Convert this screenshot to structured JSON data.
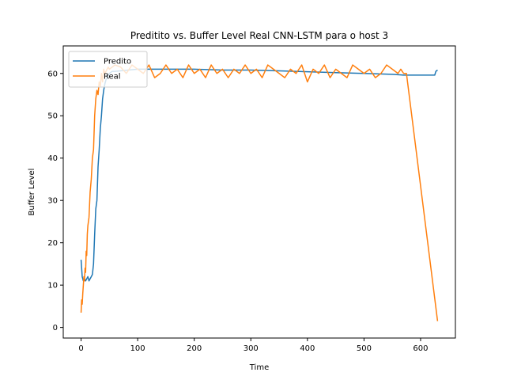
{
  "chart_data": {
    "type": "line",
    "title": "Preditito vs. Buffer Level Real CNN-LSTM para o host 3",
    "xlabel": "Time",
    "ylabel": "Buffer Level",
    "xlim": [
      -31.5,
      661.5
    ],
    "ylim": [
      -2.5,
      66.5
    ],
    "xticks": [
      0,
      100,
      200,
      300,
      400,
      500,
      600
    ],
    "yticks": [
      0,
      10,
      20,
      30,
      40,
      50,
      60
    ],
    "grid": false,
    "legend_position": "top-left",
    "series": [
      {
        "name": "Predito",
        "color": "#1f77b4",
        "x": [
          0,
          2,
          4,
          6,
          8,
          10,
          12,
          14,
          16,
          18,
          20,
          22,
          24,
          26,
          28,
          30,
          32,
          34,
          36,
          38,
          40,
          42,
          44,
          46,
          48,
          50,
          55,
          60,
          100,
          150,
          200,
          250,
          300,
          350,
          400,
          450,
          500,
          550,
          570,
          600,
          625,
          627,
          630
        ],
        "y": [
          16,
          12,
          11,
          11.5,
          11,
          11.5,
          12,
          11,
          11.5,
          12,
          12.5,
          15,
          22,
          28,
          30,
          38,
          42,
          47,
          50,
          54,
          56,
          57.5,
          58.5,
          59,
          59.5,
          60,
          60.5,
          60.5,
          61,
          61,
          61,
          60.8,
          60.8,
          60.6,
          60.4,
          60.2,
          60,
          59.8,
          59.6,
          59.6,
          59.6,
          60.5,
          60.8
        ]
      },
      {
        "name": "Real",
        "color": "#ff7f0e",
        "x": [
          0,
          1,
          2,
          3,
          4,
          5,
          6,
          7,
          8,
          9,
          10,
          11,
          12,
          14,
          16,
          18,
          20,
          22,
          24,
          26,
          28,
          30,
          32,
          34,
          36,
          38,
          40,
          42,
          44,
          46,
          48,
          50,
          60,
          70,
          80,
          90,
          100,
          110,
          120,
          130,
          140,
          150,
          160,
          170,
          180,
          190,
          200,
          210,
          220,
          230,
          240,
          250,
          260,
          270,
          280,
          290,
          300,
          310,
          320,
          330,
          340,
          350,
          360,
          370,
          380,
          390,
          400,
          410,
          420,
          430,
          440,
          450,
          460,
          470,
          480,
          490,
          500,
          510,
          520,
          530,
          540,
          550,
          560,
          565,
          570,
          575,
          630
        ],
        "y": [
          3.5,
          6.5,
          5.5,
          8,
          10,
          12,
          11,
          14,
          13,
          18,
          17,
          22,
          24,
          26,
          32,
          35,
          40,
          42,
          50,
          54,
          56,
          55,
          58,
          57,
          60,
          58,
          61,
          60,
          60.5,
          61,
          61.5,
          61,
          62,
          61.5,
          60,
          62,
          61,
          60,
          62,
          59,
          60,
          62,
          60,
          61,
          59,
          62,
          60,
          61,
          59,
          62,
          60,
          61,
          59,
          61,
          60,
          62,
          60,
          61,
          59,
          62,
          61,
          60,
          59,
          61,
          60,
          62,
          58,
          61,
          60,
          62,
          59,
          61,
          60,
          59,
          62,
          61,
          60,
          61,
          59,
          60,
          62,
          61,
          60,
          61,
          60,
          60,
          1.5
        ]
      }
    ]
  }
}
